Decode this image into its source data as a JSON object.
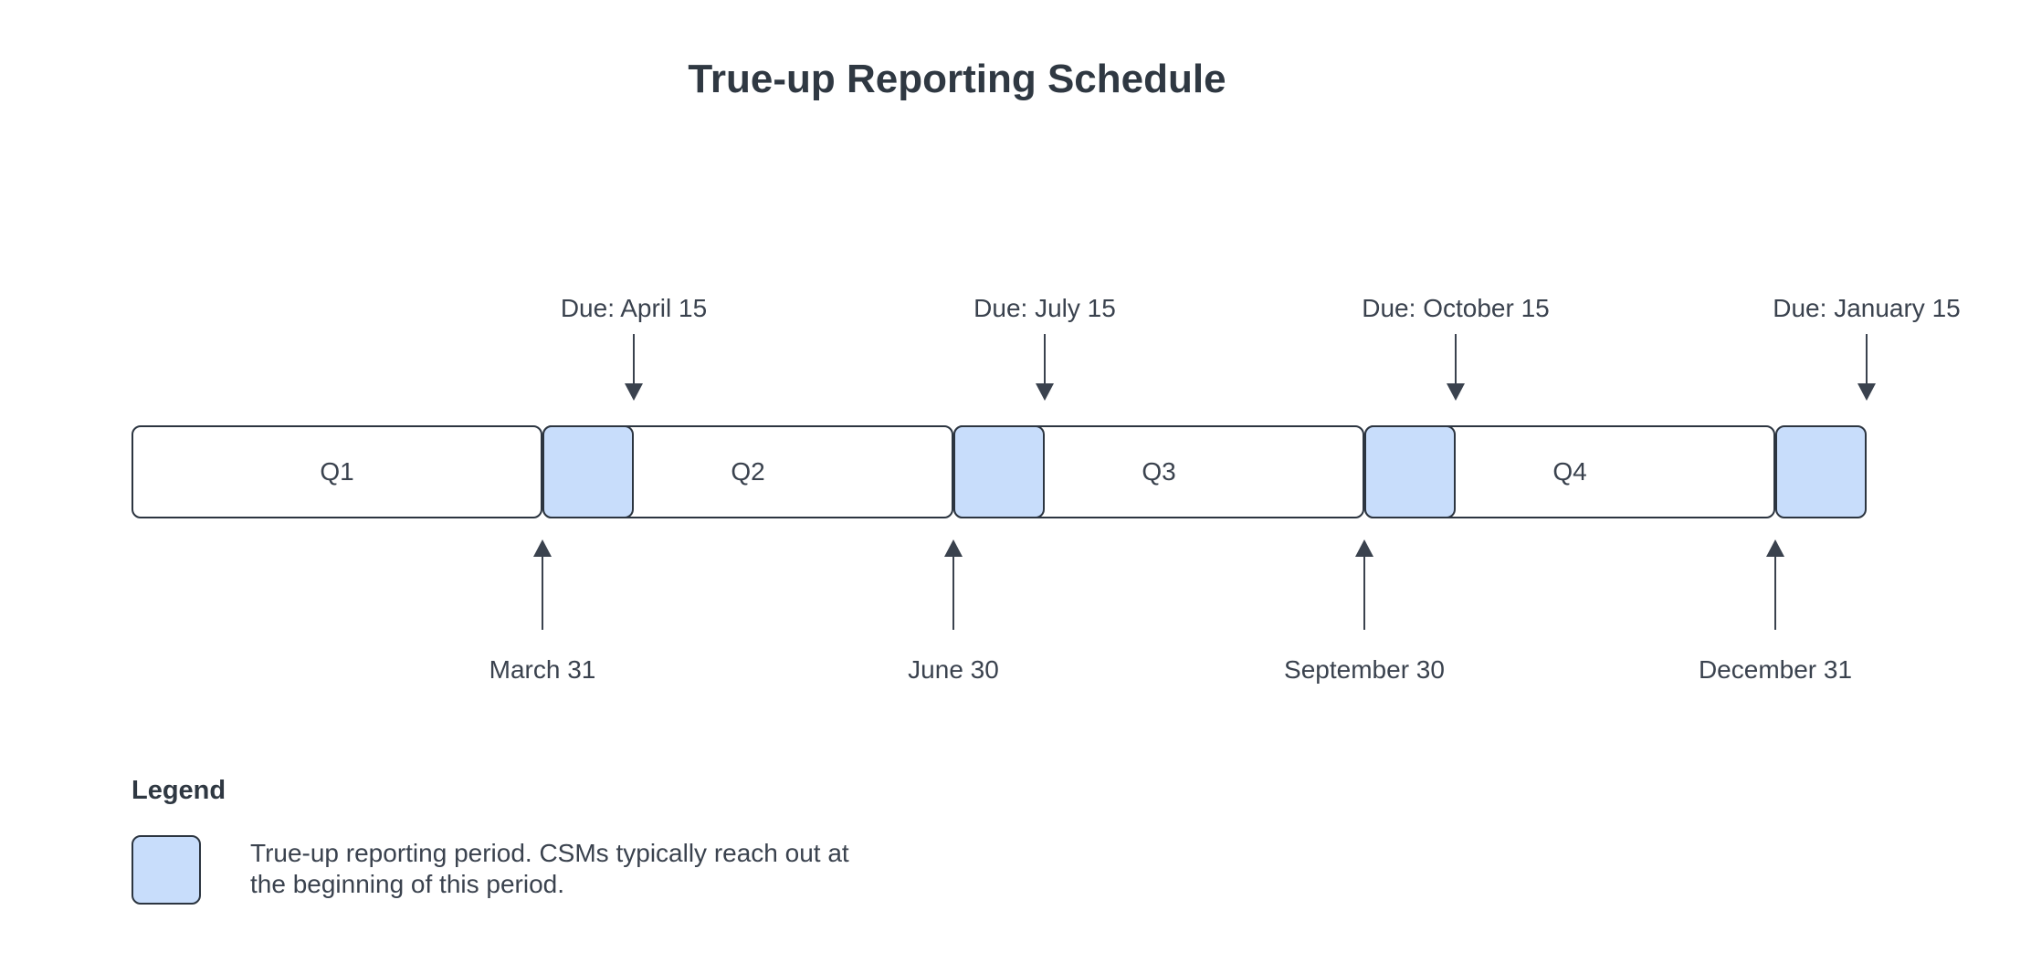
{
  "title": "True-up Reporting Schedule",
  "colors": {
    "highlight_fill": "#c8ddfb",
    "box_border": "#2c3540",
    "text_color": "#3a424e",
    "arrow_color": "#3a424e"
  },
  "timeline": {
    "quarters": [
      {
        "label": "Q1"
      },
      {
        "label": "Q2"
      },
      {
        "label": "Q3"
      },
      {
        "label": "Q4"
      }
    ],
    "due_markers": [
      {
        "label": "Due: April 15"
      },
      {
        "label": "Due: July 15"
      },
      {
        "label": "Due: October 15"
      },
      {
        "label": "Due: January 15"
      }
    ],
    "quarter_end_markers": [
      {
        "label": "March 31"
      },
      {
        "label": "June 30"
      },
      {
        "label": "September 30"
      },
      {
        "label": "December 31"
      }
    ]
  },
  "legend": {
    "heading": "Legend",
    "lines": {
      "0": "True-up reporting period. CSMs typically reach out at",
      "1": "the beginning of this period."
    }
  }
}
